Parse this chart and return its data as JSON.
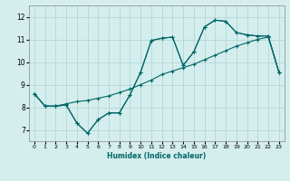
{
  "xlabel": "Humidex (Indice chaleur)",
  "ylabel": "",
  "bg_color": "#d4eeee",
  "grid_color": "#b0d0d0",
  "line_color": "#006666",
  "xlim": [
    -0.5,
    23.5
  ],
  "ylim": [
    6.5,
    12.5
  ],
  "xticks": [
    0,
    1,
    2,
    3,
    4,
    5,
    6,
    7,
    8,
    9,
    10,
    11,
    12,
    13,
    14,
    15,
    16,
    17,
    18,
    19,
    20,
    21,
    22,
    23
  ],
  "yticks": [
    7,
    8,
    9,
    10,
    11,
    12
  ],
  "line1_x": [
    0,
    1,
    2,
    3,
    4,
    5,
    6,
    7,
    8,
    9,
    10,
    11,
    12,
    13,
    14,
    15,
    16,
    17,
    18,
    19,
    20,
    21,
    22,
    23
  ],
  "line1_y": [
    8.6,
    8.05,
    8.05,
    8.1,
    7.3,
    6.85,
    7.45,
    7.75,
    7.75,
    8.55,
    9.55,
    10.95,
    11.05,
    11.1,
    9.85,
    10.45,
    11.55,
    11.85,
    11.8,
    11.3,
    11.2,
    11.15,
    11.15,
    9.55
  ],
  "line2_x": [
    0,
    1,
    2,
    3,
    4,
    5,
    6,
    7,
    8,
    9,
    10,
    11,
    12,
    13,
    14,
    15,
    16,
    17,
    18,
    19,
    20,
    21,
    22,
    23
  ],
  "line2_y": [
    8.6,
    8.05,
    8.05,
    8.15,
    8.25,
    8.3,
    8.4,
    8.5,
    8.65,
    8.8,
    9.0,
    9.2,
    9.45,
    9.6,
    9.75,
    9.9,
    10.1,
    10.3,
    10.5,
    10.7,
    10.85,
    11.0,
    11.1,
    9.55
  ],
  "line3_x": [
    0,
    1,
    2,
    3,
    4,
    5,
    6,
    7,
    8,
    9,
    10,
    11,
    12,
    13,
    14,
    15,
    16,
    17,
    18,
    19,
    20,
    21,
    22,
    23
  ],
  "line3_y": [
    8.6,
    8.05,
    8.05,
    8.1,
    7.3,
    6.85,
    7.45,
    7.75,
    7.75,
    8.55,
    9.55,
    10.95,
    11.05,
    11.1,
    9.85,
    10.45,
    11.55,
    11.85,
    11.8,
    11.3,
    11.2,
    11.15,
    11.15,
    9.55
  ]
}
